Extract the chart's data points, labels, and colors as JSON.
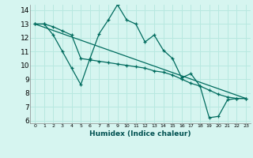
{
  "xlabel": "Humidex (Indice chaleur)",
  "bg_color": "#d6f5f0",
  "grid_color": "#b8e8e0",
  "line_color": "#006b5e",
  "xlim": [
    -0.5,
    23.5
  ],
  "ylim": [
    5.8,
    14.4
  ],
  "yticks": [
    6,
    7,
    8,
    9,
    10,
    11,
    12,
    13,
    14
  ],
  "xticks": [
    0,
    1,
    2,
    3,
    4,
    5,
    6,
    7,
    8,
    9,
    10,
    11,
    12,
    13,
    14,
    15,
    16,
    17,
    18,
    19,
    20,
    21,
    22,
    23
  ],
  "line1_x": [
    0,
    1,
    2,
    3,
    4,
    5,
    6,
    7,
    8,
    9,
    10,
    11,
    12,
    13,
    14,
    15,
    16,
    17,
    18,
    19,
    20,
    21,
    22,
    23
  ],
  "line1_y": [
    13.0,
    13.0,
    12.2,
    11.0,
    9.8,
    8.6,
    10.5,
    12.3,
    13.3,
    14.4,
    13.3,
    13.0,
    11.7,
    12.2,
    11.1,
    10.5,
    9.1,
    9.4,
    8.5,
    6.2,
    6.3,
    7.5,
    7.6,
    7.6
  ],
  "line2_x": [
    0,
    1,
    2,
    3,
    4,
    5,
    6,
    7,
    8,
    9,
    10,
    11,
    12,
    13,
    14,
    15,
    16,
    17,
    18,
    19,
    20,
    21,
    22,
    23
  ],
  "line2_y": [
    13.0,
    13.0,
    12.8,
    12.5,
    12.2,
    10.5,
    10.4,
    10.3,
    10.2,
    10.1,
    10.0,
    9.9,
    9.8,
    9.6,
    9.5,
    9.3,
    9.0,
    8.7,
    8.5,
    8.2,
    7.9,
    7.7,
    7.6,
    7.6
  ],
  "line3_x": [
    0,
    23
  ],
  "line3_y": [
    13.0,
    7.6
  ]
}
